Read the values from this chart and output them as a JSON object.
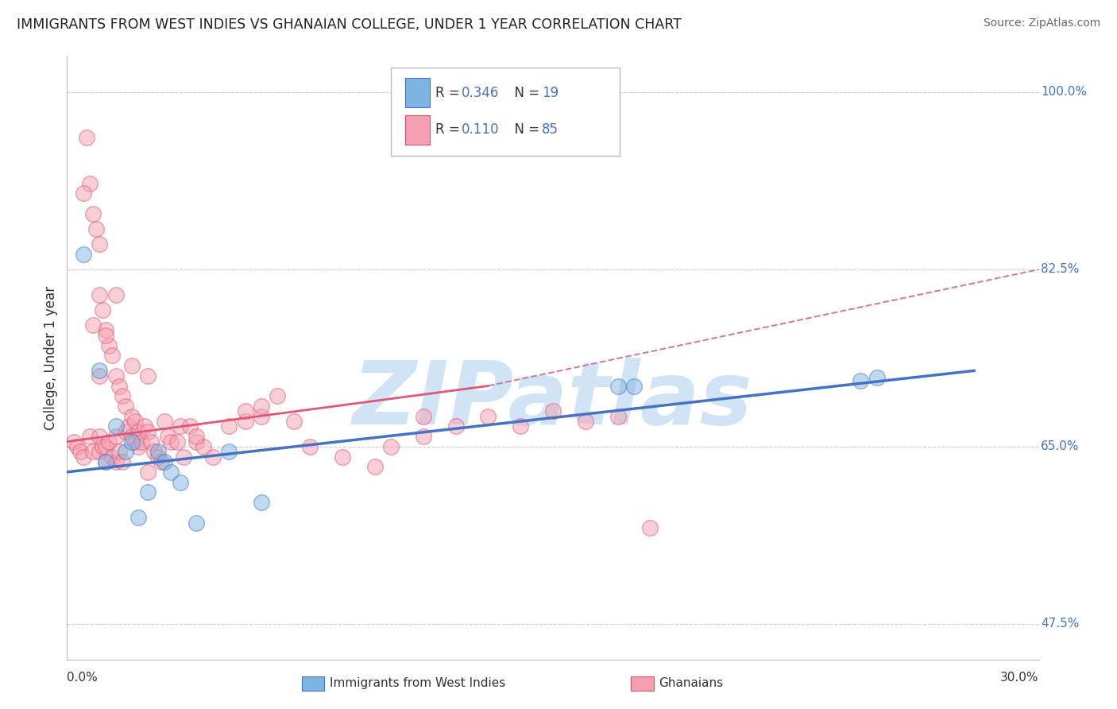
{
  "title": "IMMIGRANTS FROM WEST INDIES VS GHANAIAN COLLEGE, UNDER 1 YEAR CORRELATION CHART",
  "source": "Source: ZipAtlas.com",
  "xlabel_bottom_left": "0.0%",
  "xlabel_bottom_right": "30.0%",
  "ylabel": "College, Under 1 year",
  "xlim": [
    0.0,
    30.0
  ],
  "ylim": [
    44.0,
    103.5
  ],
  "yticks": [
    47.5,
    65.0,
    82.5,
    100.0
  ],
  "ytick_labels": [
    "47.5%",
    "65.0%",
    "82.5%",
    "100.0%"
  ],
  "grid_color": "#cccccc",
  "background_color": "#ffffff",
  "watermark": "ZIPatlas",
  "watermark_color": "#d0e4f5",
  "series1_name": "Immigrants from West Indies",
  "series1_color": "#7eb4e2",
  "series1_edge_color": "#4472c4",
  "series1_R": "0.346",
  "series1_N": "19",
  "series2_name": "Ghanaians",
  "series2_color": "#f4a0b0",
  "series2_edge_color": "#e05070",
  "series2_R": "0.110",
  "series2_N": "85",
  "legend_blue_color": "#4472c4",
  "legend_text_color": "#333333",
  "blue_line_color": "#4472c4",
  "pink_line_color": "#e05878",
  "dashed_line_color": "#d08090",
  "series1_x": [
    0.5,
    1.0,
    1.2,
    1.5,
    1.8,
    2.0,
    2.2,
    2.5,
    2.8,
    3.0,
    3.2,
    3.5,
    4.0,
    5.0,
    6.0,
    17.0,
    17.5,
    24.5,
    25.0
  ],
  "series1_y": [
    84.0,
    72.5,
    63.5,
    67.0,
    64.5,
    65.5,
    58.0,
    60.5,
    64.5,
    63.5,
    62.5,
    61.5,
    57.5,
    64.5,
    59.5,
    71.0,
    71.0,
    71.5,
    71.8
  ],
  "series2_x": [
    0.2,
    0.3,
    0.4,
    0.5,
    0.6,
    0.7,
    0.7,
    0.8,
    0.8,
    0.9,
    1.0,
    1.0,
    1.0,
    1.0,
    1.1,
    1.1,
    1.2,
    1.2,
    1.2,
    1.3,
    1.3,
    1.4,
    1.4,
    1.5,
    1.5,
    1.5,
    1.6,
    1.6,
    1.7,
    1.7,
    1.8,
    1.8,
    1.9,
    2.0,
    2.0,
    2.1,
    2.1,
    2.2,
    2.2,
    2.3,
    2.4,
    2.5,
    2.5,
    2.6,
    2.7,
    2.8,
    2.9,
    3.0,
    3.1,
    3.2,
    3.4,
    3.5,
    3.6,
    3.8,
    4.0,
    4.2,
    4.5,
    5.0,
    5.5,
    6.0,
    6.5,
    7.0,
    7.5,
    8.5,
    9.5,
    10.0,
    11.0,
    12.0,
    13.0,
    14.0,
    16.0,
    17.0,
    18.0,
    1.5,
    2.0,
    1.0,
    0.5,
    0.8,
    1.2,
    4.0,
    2.5,
    5.5,
    6.0,
    11.0,
    15.0
  ],
  "series2_y": [
    65.5,
    65.0,
    64.5,
    64.0,
    95.5,
    91.0,
    66.0,
    88.0,
    64.5,
    86.5,
    85.0,
    80.0,
    66.0,
    64.5,
    78.5,
    65.0,
    76.5,
    65.0,
    63.5,
    75.0,
    65.5,
    74.0,
    64.0,
    72.0,
    66.0,
    63.5,
    71.0,
    64.5,
    70.0,
    63.5,
    69.0,
    66.5,
    67.0,
    68.0,
    66.0,
    67.5,
    65.5,
    66.5,
    65.0,
    65.5,
    67.0,
    66.5,
    72.0,
    65.5,
    64.5,
    64.0,
    63.5,
    67.5,
    66.0,
    65.5,
    65.5,
    67.0,
    64.0,
    67.0,
    65.5,
    65.0,
    64.0,
    67.0,
    67.5,
    68.0,
    70.0,
    67.5,
    65.0,
    64.0,
    63.0,
    65.0,
    66.0,
    67.0,
    68.0,
    67.0,
    67.5,
    68.0,
    57.0,
    80.0,
    73.0,
    72.0,
    90.0,
    77.0,
    76.0,
    66.0,
    62.5,
    68.5,
    69.0,
    68.0,
    68.5
  ],
  "blue_line_x0": 0.0,
  "blue_line_y0": 62.5,
  "blue_line_x1": 28.0,
  "blue_line_y1": 72.5,
  "pink_solid_x0": 0.0,
  "pink_solid_y0": 65.5,
  "pink_solid_x1": 13.0,
  "pink_solid_y1": 71.0,
  "pink_dashed_x0": 13.0,
  "pink_dashed_y0": 71.0,
  "pink_dashed_x1": 30.0,
  "pink_dashed_y1": 82.5
}
